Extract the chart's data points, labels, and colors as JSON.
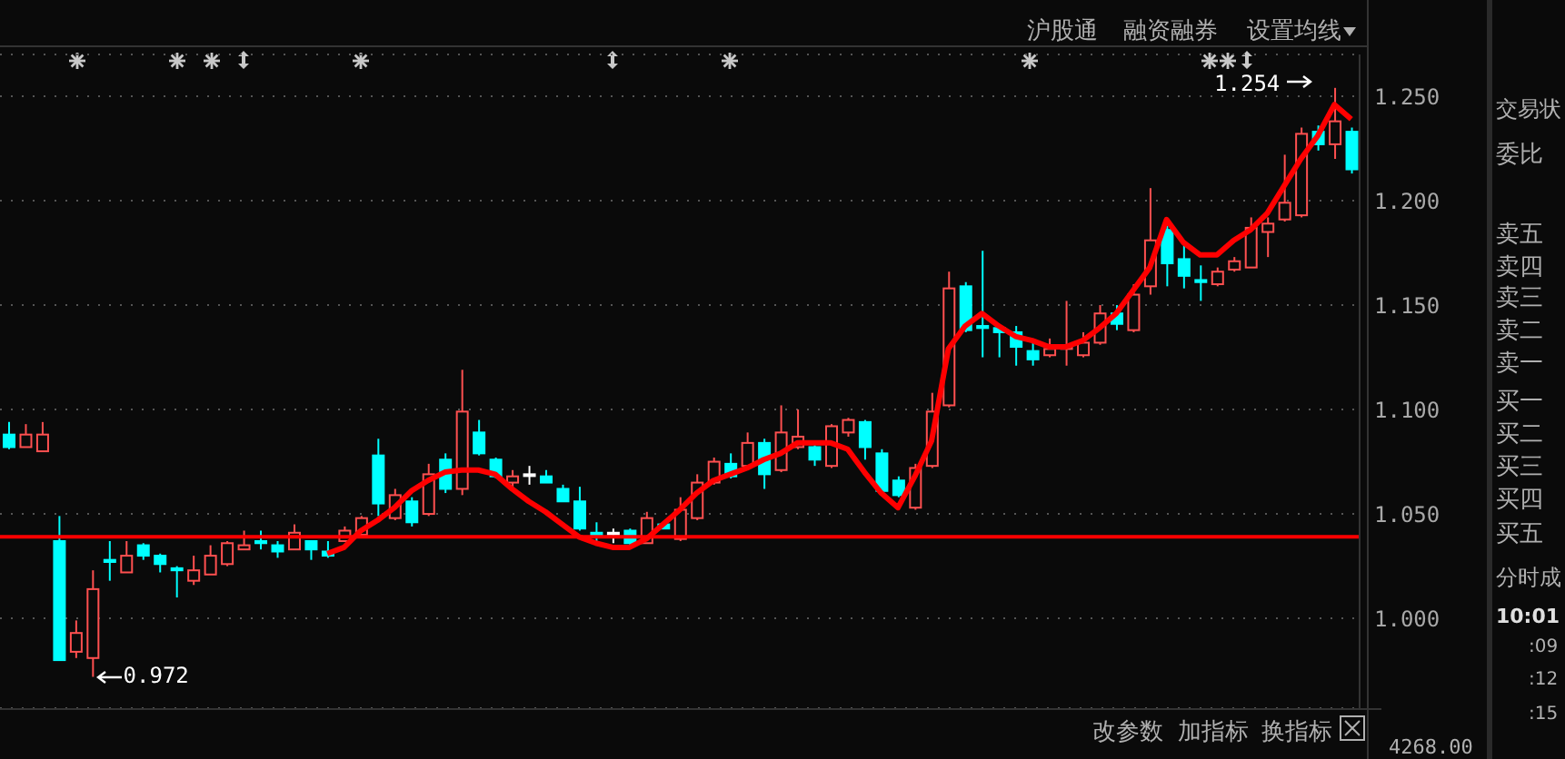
{
  "chart_data": {
    "type": "candlestick",
    "categories": [
      null,
      null,
      null,
      null,
      null,
      null,
      null,
      null,
      null,
      null,
      null,
      null,
      null,
      null,
      null,
      null,
      null,
      null,
      null,
      null,
      null,
      null,
      null,
      null,
      null,
      null,
      null,
      null,
      null,
      null,
      null,
      null,
      null,
      null,
      null,
      null,
      null,
      null,
      null,
      null,
      null,
      null,
      null,
      null,
      null,
      null,
      null,
      null,
      null,
      null,
      null,
      null,
      null,
      null,
      null,
      null,
      null,
      null,
      null,
      null,
      null,
      null,
      null,
      null,
      null,
      null,
      null,
      null,
      null,
      null,
      null,
      null,
      null,
      null,
      null,
      null,
      null,
      null,
      null,
      null,
      null
    ],
    "ohlc": [
      [
        1.088,
        1.094,
        1.081,
        1.082
      ],
      [
        1.082,
        1.093,
        1.082,
        1.088
      ],
      [
        1.08,
        1.094,
        1.08,
        1.088
      ],
      [
        1.037,
        1.049,
        0.98,
        0.98
      ],
      [
        0.984,
        0.999,
        0.981,
        0.993
      ],
      [
        0.981,
        1.023,
        0.972,
        1.014
      ],
      [
        1.028,
        1.037,
        1.018,
        1.027
      ],
      [
        1.022,
        1.037,
        1.022,
        1.03
      ],
      [
        1.035,
        1.036,
        1.028,
        1.03
      ],
      [
        1.03,
        1.031,
        1.022,
        1.026
      ],
      [
        1.024,
        1.025,
        1.01,
        1.023
      ],
      [
        1.018,
        1.03,
        1.016,
        1.023
      ],
      [
        1.021,
        1.035,
        1.021,
        1.03
      ],
      [
        1.026,
        1.037,
        1.025,
        1.036
      ],
      [
        1.033,
        1.042,
        1.033,
        1.035
      ],
      [
        1.037,
        1.042,
        1.033,
        1.036
      ],
      [
        1.035,
        1.037,
        1.029,
        1.032
      ],
      [
        1.033,
        1.045,
        1.033,
        1.041
      ],
      [
        1.037,
        1.037,
        1.028,
        1.033
      ],
      [
        1.032,
        1.037,
        1.029,
        1.03
      ],
      [
        1.037,
        1.044,
        1.037,
        1.042
      ],
      [
        1.04,
        1.049,
        1.039,
        1.048
      ],
      [
        1.078,
        1.086,
        1.049,
        1.055
      ],
      [
        1.048,
        1.062,
        1.047,
        1.059
      ],
      [
        1.056,
        1.058,
        1.044,
        1.046
      ],
      [
        1.05,
        1.074,
        1.049,
        1.069
      ],
      [
        1.076,
        1.079,
        1.06,
        1.062
      ],
      [
        1.062,
        1.119,
        1.059,
        1.099
      ],
      [
        1.089,
        1.095,
        1.078,
        1.079
      ],
      [
        1.076,
        1.077,
        1.067,
        1.068
      ],
      [
        1.065,
        1.071,
        1.063,
        1.068
      ],
      [
        1.069,
        1.073,
        1.064,
        1.069
      ],
      [
        1.068,
        1.071,
        1.065,
        1.065
      ],
      [
        1.062,
        1.064,
        1.056,
        1.056
      ],
      [
        1.056,
        1.063,
        1.042,
        1.043
      ],
      [
        1.041,
        1.046,
        1.036,
        1.04
      ],
      [
        1.041,
        1.043,
        1.036,
        1.041
      ],
      [
        1.042,
        1.043,
        1.035,
        1.036
      ],
      [
        1.036,
        1.051,
        1.036,
        1.048
      ],
      [
        1.045,
        1.046,
        1.043,
        1.043
      ],
      [
        1.038,
        1.058,
        1.037,
        1.052
      ],
      [
        1.048,
        1.069,
        1.047,
        1.065
      ],
      [
        1.065,
        1.077,
        1.064,
        1.075
      ],
      [
        1.074,
        1.079,
        1.067,
        1.068
      ],
      [
        1.073,
        1.089,
        1.072,
        1.084
      ],
      [
        1.084,
        1.086,
        1.062,
        1.069
      ],
      [
        1.071,
        1.102,
        1.07,
        1.089
      ],
      [
        1.082,
        1.1,
        1.081,
        1.087
      ],
      [
        1.082,
        1.083,
        1.073,
        1.076
      ],
      [
        1.073,
        1.093,
        1.072,
        1.092
      ],
      [
        1.089,
        1.096,
        1.087,
        1.095
      ],
      [
        1.094,
        1.095,
        1.076,
        1.082
      ],
      [
        1.079,
        1.081,
        1.06,
        1.061
      ],
      [
        1.066,
        1.068,
        1.058,
        1.059
      ],
      [
        1.053,
        1.074,
        1.052,
        1.072
      ],
      [
        1.073,
        1.108,
        1.072,
        1.099
      ],
      [
        1.102,
        1.166,
        1.101,
        1.158
      ],
      [
        1.159,
        1.161,
        1.137,
        1.138
      ],
      [
        1.14,
        1.176,
        1.125,
        1.139
      ],
      [
        1.139,
        1.14,
        1.125,
        1.137
      ],
      [
        1.137,
        1.14,
        1.121,
        1.13
      ],
      [
        1.128,
        1.132,
        1.121,
        1.124
      ],
      [
        1.126,
        1.134,
        1.125,
        1.129
      ],
      [
        1.129,
        1.152,
        1.121,
        1.13
      ],
      [
        1.126,
        1.137,
        1.125,
        1.132
      ],
      [
        1.132,
        1.15,
        1.131,
        1.146
      ],
      [
        1.146,
        1.15,
        1.138,
        1.141
      ],
      [
        1.138,
        1.16,
        1.137,
        1.155
      ],
      [
        1.159,
        1.206,
        1.155,
        1.181
      ],
      [
        1.186,
        1.188,
        1.159,
        1.17
      ],
      [
        1.172,
        1.18,
        1.158,
        1.164
      ],
      [
        1.162,
        1.169,
        1.152,
        1.161
      ],
      [
        1.16,
        1.168,
        1.159,
        1.166
      ],
      [
        1.167,
        1.173,
        1.166,
        1.171
      ],
      [
        1.168,
        1.192,
        1.168,
        1.187
      ],
      [
        1.185,
        1.192,
        1.173,
        1.189
      ],
      [
        1.191,
        1.222,
        1.19,
        1.199
      ],
      [
        1.193,
        1.235,
        1.192,
        1.232
      ],
      [
        1.233,
        1.236,
        1.224,
        1.227
      ],
      [
        1.227,
        1.254,
        1.22,
        1.238
      ],
      [
        1.233,
        1.235,
        1.213,
        1.215
      ]
    ],
    "colors": [
      "#00ffff",
      "#ff5050",
      "#ff5050",
      "#00ffff",
      "#ff5050",
      "#ff5050",
      "#00ffff",
      "#ff5050",
      "#00ffff",
      "#00ffff",
      "#00ffff",
      "#ff5050",
      "#ff5050",
      "#ff5050",
      "#ff5050",
      "#00ffff",
      "#00ffff",
      "#ff5050",
      "#00ffff",
      "#00ffff",
      "#ff5050",
      "#ff5050",
      "#00ffff",
      "#ff5050",
      "#00ffff",
      "#ff5050",
      "#00ffff",
      "#ff5050",
      "#00ffff",
      "#00ffff",
      "#ff5050",
      "#ffffff",
      "#00ffff",
      "#00ffff",
      "#00ffff",
      "#00ffff",
      "#ffffff",
      "#00ffff",
      "#ff5050",
      "#00ffff",
      "#ff5050",
      "#ff5050",
      "#ff5050",
      "#00ffff",
      "#ff5050",
      "#00ffff",
      "#ff5050",
      "#ff5050",
      "#00ffff",
      "#ff5050",
      "#ff5050",
      "#00ffff",
      "#00ffff",
      "#00ffff",
      "#ff5050",
      "#ff5050",
      "#ff5050",
      "#00ffff",
      "#00ffff",
      "#00ffff",
      "#00ffff",
      "#00ffff",
      "#ff5050",
      "#ff5050",
      "#ff5050",
      "#ff5050",
      "#00ffff",
      "#ff5050",
      "#ff5050",
      "#00ffff",
      "#00ffff",
      "#00ffff",
      "#ff5050",
      "#ff5050",
      "#ff5050",
      "#ff5050",
      "#ff5050",
      "#ff5050",
      "#00ffff",
      "#ff5050",
      "#00ffff"
    ],
    "series": [
      {
        "type": "line",
        "color": "#ff0000",
        "values": [
          null,
          null,
          null,
          null,
          null,
          null,
          null,
          null,
          null,
          null,
          null,
          null,
          null,
          null,
          null,
          null,
          null,
          null,
          null,
          1.031,
          1.034,
          1.042,
          1.047,
          1.053,
          1.061,
          1.066,
          1.07,
          1.071,
          1.071,
          1.069,
          1.062,
          1.056,
          1.051,
          1.045,
          1.039,
          1.036,
          1.034,
          1.034,
          1.038,
          1.045,
          1.052,
          1.06,
          1.066,
          1.069,
          1.072,
          1.076,
          1.079,
          1.084,
          1.084,
          1.084,
          1.081,
          1.07,
          1.06,
          1.053,
          1.068,
          1.085,
          1.129,
          1.14,
          1.146,
          1.14,
          1.135,
          1.133,
          1.13,
          1.13,
          1.133,
          1.139,
          1.146,
          1.157,
          1.168,
          1.191,
          1.18,
          1.174,
          1.174,
          1.181,
          1.186,
          1.194,
          1.207,
          1.22,
          1.231,
          1.246,
          1.239
        ]
      }
    ],
    "ylim": [
      0.957,
      1.27
    ],
    "yticks": [
      {
        "value": 1,
        "label": "1.000"
      },
      {
        "value": 1.05,
        "label": "1.050"
      },
      {
        "value": 1.1,
        "label": "1.100"
      },
      {
        "value": 1.15,
        "label": "1.150"
      },
      {
        "value": 1.2,
        "label": "1.200"
      },
      {
        "value": 1.25,
        "label": "1.250"
      }
    ],
    "grid": "y",
    "marker": "none",
    "line_style": "solid",
    "ref_lines": [
      {
        "axis": "y",
        "value": 1.039,
        "color": "#ff0000"
      }
    ],
    "annotations": [
      "1.254",
      "0.972",
      "沪股通",
      "融资融券",
      "设置均线",
      "改参数",
      "加指标",
      "换指标",
      "4268.00",
      "交易状",
      "委比",
      "卖五",
      "卖四",
      "卖三",
      "卖二",
      "卖一",
      "买一",
      "买二",
      "买三",
      "买四",
      "买五",
      "分时成",
      "10:01",
      ":09",
      ":12",
      ":15"
    ]
  }
}
